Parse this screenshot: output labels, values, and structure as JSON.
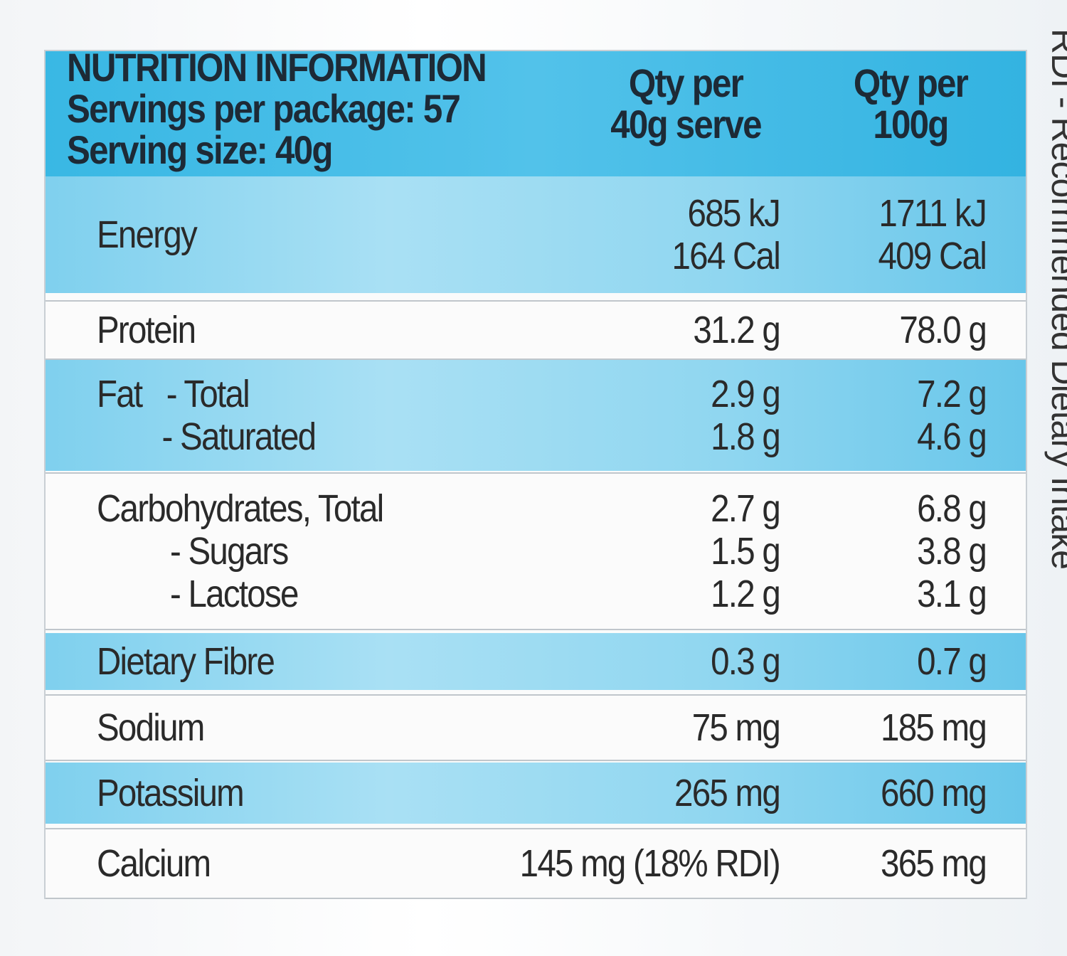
{
  "header": {
    "title": "NUTRITION INFORMATION",
    "servings": "Servings per package: 57",
    "serving_size": "Serving size: 40g",
    "columns": [
      [
        "Qty per",
        "40g serve"
      ],
      [
        "Qty per",
        "100g"
      ]
    ]
  },
  "rows": [
    {
      "label": [
        "Energy"
      ],
      "per_serve": [
        "685 kJ",
        "164 Cal"
      ],
      "per_100g": [
        "1711 kJ",
        "409 Cal"
      ]
    },
    {
      "label": [
        "Protein"
      ],
      "per_serve": [
        "31.2 g"
      ],
      "per_100g": [
        "78.0 g"
      ]
    },
    {
      "label": [
        "Fat   - Total",
        "        - Saturated"
      ],
      "per_serve": [
        "2.9 g",
        "1.8 g"
      ],
      "per_100g": [
        "7.2 g",
        "4.6 g"
      ]
    },
    {
      "label": [
        "Carbohydrates, Total",
        "         - Sugars",
        "         - Lactose"
      ],
      "per_serve": [
        "2.7 g",
        "1.5 g",
        "1.2 g"
      ],
      "per_100g": [
        "6.8 g",
        "3.8 g",
        "3.1 g"
      ]
    },
    {
      "label": [
        "Dietary Fibre"
      ],
      "per_serve": [
        "0.3 g"
      ],
      "per_100g": [
        "0.7 g"
      ]
    },
    {
      "label": [
        "Sodium"
      ],
      "per_serve": [
        "75 mg"
      ],
      "per_100g": [
        "185 mg"
      ]
    },
    {
      "label": [
        "Potassium"
      ],
      "per_serve": [
        "265 mg"
      ],
      "per_100g": [
        "660 mg"
      ]
    },
    {
      "label": [
        "Calcium"
      ],
      "per_serve": [
        "145 mg (18% RDI)"
      ],
      "per_100g": [
        "365 mg"
      ]
    }
  ],
  "side_note": "RDI - Recommended Dietary Intake"
}
